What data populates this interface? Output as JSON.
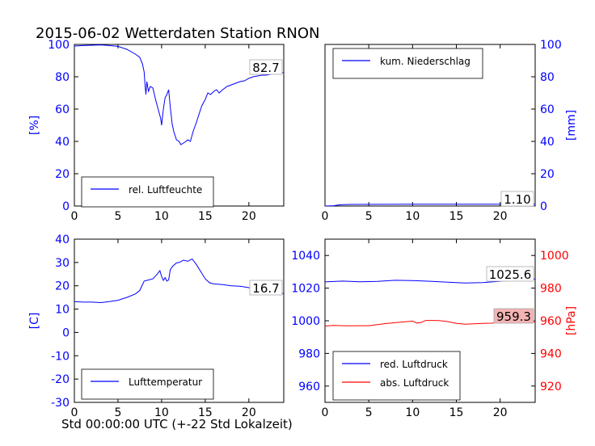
{
  "title": "2015-06-02 Wetterdaten Station RNON",
  "xlabel": "Std 00:00:00 UTC (+-22 Std Lokalzeit)",
  "colors": {
    "blue": "#0000ff",
    "red": "#ff0000",
    "axes": "#000000",
    "label_box_red": "#f4b3b3"
  },
  "chart_data": [
    {
      "type": "line",
      "panel": "top-left",
      "ylabel": "[%]",
      "xlim": [
        0,
        24
      ],
      "ylim": [
        0,
        100
      ],
      "xticks": [
        "0",
        "5",
        "10",
        "15",
        "20"
      ],
      "yticks": [
        "0",
        "20",
        "40",
        "60",
        "80",
        "100"
      ],
      "legend_position": "bottom-left",
      "last_value_label": "82.7",
      "series": [
        {
          "name": "rel. Luftfeuchte",
          "color": "#0000ff",
          "x": [
            0,
            1,
            2,
            3,
            4,
            5,
            6,
            7,
            7.5,
            7.8,
            8,
            8.1,
            8.2,
            8.3,
            8.5,
            8.7,
            9,
            9.3,
            9.5,
            9.7,
            9.8,
            9.9,
            10,
            10.2,
            10.4,
            10.6,
            10.8,
            11,
            11.2,
            11.4,
            11.7,
            12,
            12.2,
            12.5,
            12.8,
            13,
            13.3,
            13.6,
            14,
            14.3,
            14.6,
            15,
            15.3,
            15.6,
            16,
            16.3,
            16.6,
            17,
            17.5,
            18,
            18.5,
            19,
            19.5,
            20,
            20.5,
            21,
            21.5,
            22,
            22.5,
            23,
            23.5,
            24
          ],
          "y": [
            99,
            99.3,
            99.5,
            99.7,
            99.3,
            98.8,
            97,
            94,
            92,
            88,
            83,
            75,
            69,
            77,
            71,
            74,
            73,
            66,
            62,
            58,
            56,
            54,
            50,
            60,
            67,
            69,
            72,
            61,
            51,
            46,
            41,
            40,
            38,
            39,
            40,
            41,
            40,
            46,
            52,
            57,
            62,
            66,
            70,
            69,
            71,
            72,
            70,
            72,
            74,
            75,
            76,
            77,
            77.5,
            79,
            80,
            80.5,
            81,
            81,
            81.5,
            82,
            82.5,
            82.7
          ]
        }
      ]
    },
    {
      "type": "line",
      "panel": "top-right",
      "ylabel": "[mm]",
      "xlim": [
        0,
        24
      ],
      "ylim": [
        0,
        100
      ],
      "xticks": [
        "0",
        "5",
        "10",
        "15",
        "20"
      ],
      "yticks": [
        "0",
        "20",
        "40",
        "60",
        "80",
        "100"
      ],
      "legend_position": "top-left",
      "last_value_label": "1.10",
      "series": [
        {
          "name": "kum. Niederschlag",
          "color": "#0000ff",
          "x": [
            0,
            1,
            1.5,
            2,
            3,
            6,
            10,
            15,
            20,
            24
          ],
          "y": [
            0,
            0.2,
            0.6,
            0.9,
            1.0,
            1.05,
            1.08,
            1.1,
            1.1,
            1.1
          ]
        }
      ]
    },
    {
      "type": "line",
      "panel": "bottom-left",
      "ylabel": "[C]",
      "xlim": [
        0,
        24
      ],
      "ylim": [
        -30,
        40
      ],
      "xticks": [
        "0",
        "5",
        "10",
        "15",
        "20"
      ],
      "yticks": [
        "-30",
        "-20",
        "-10",
        "0",
        "10",
        "20",
        "30",
        "40"
      ],
      "legend_position": "bottom-left",
      "last_value_label": "16.7",
      "series": [
        {
          "name": "Lufttemperatur",
          "color": "#0000ff",
          "x": [
            0,
            1,
            2,
            3,
            4,
            5,
            6,
            7,
            7.5,
            8,
            8.5,
            9,
            9.5,
            9.8,
            10,
            10.2,
            10.4,
            10.6,
            10.8,
            11,
            11.3,
            11.7,
            12,
            12.5,
            13,
            13.5,
            14,
            14.5,
            15,
            15.5,
            16,
            17,
            18,
            19,
            20,
            21,
            22,
            23,
            24
          ],
          "y": [
            13.2,
            13,
            13,
            12.8,
            13.2,
            13.8,
            15,
            16.5,
            18,
            22,
            22.5,
            23,
            25,
            26.5,
            24,
            22.3,
            23.5,
            22,
            22.5,
            27,
            28.5,
            29.8,
            30,
            31,
            30.5,
            31.5,
            29,
            26,
            23,
            21.3,
            20.8,
            20.5,
            20,
            19.8,
            19.2,
            18.3,
            18,
            17.3,
            16.7
          ]
        }
      ]
    },
    {
      "type": "line",
      "panel": "bottom-right",
      "ylabel": "[hPa]",
      "xlim": [
        0,
        24
      ],
      "ylim_left": [
        950,
        1050
      ],
      "ylim_right": [
        910,
        1010
      ],
      "xticks": [
        "0",
        "5",
        "10",
        "15",
        "20"
      ],
      "yticks_left": [
        "960",
        "980",
        "1000",
        "1020",
        "1040"
      ],
      "yticks_right": [
        "920",
        "940",
        "960",
        "980",
        "1000"
      ],
      "legend_position": "bottom-left",
      "last_value_labels": [
        "1025.6",
        "959.3"
      ],
      "series": [
        {
          "name": "red. Luftdruck",
          "color": "#0000ff",
          "axis": "left",
          "x": [
            0,
            2,
            4,
            6,
            8,
            10,
            12,
            14,
            16,
            18,
            20,
            22,
            24
          ],
          "y": [
            1023.8,
            1024.3,
            1023.9,
            1024.1,
            1024.8,
            1024.6,
            1024.2,
            1023.6,
            1023.1,
            1023.4,
            1024.2,
            1025.0,
            1025.6
          ]
        },
        {
          "name": "abs. Luftdruck",
          "color": "#ff0000",
          "axis": "right",
          "x": [
            0,
            1,
            2,
            3,
            4,
            5,
            6,
            7,
            8,
            9,
            10,
            10.5,
            11,
            11.5,
            12,
            13,
            14,
            15,
            16,
            17,
            18,
            19,
            20,
            21,
            22,
            23,
            24
          ],
          "y": [
            956.8,
            957.2,
            957.0,
            956.9,
            957.0,
            957.0,
            957.6,
            958.3,
            958.8,
            959.3,
            959.8,
            958.6,
            959.0,
            960.2,
            960.2,
            960.1,
            959.5,
            958.4,
            957.9,
            958.1,
            958.4,
            958.5,
            958.8,
            959.0,
            959.1,
            959.2,
            959.3
          ]
        }
      ]
    }
  ]
}
